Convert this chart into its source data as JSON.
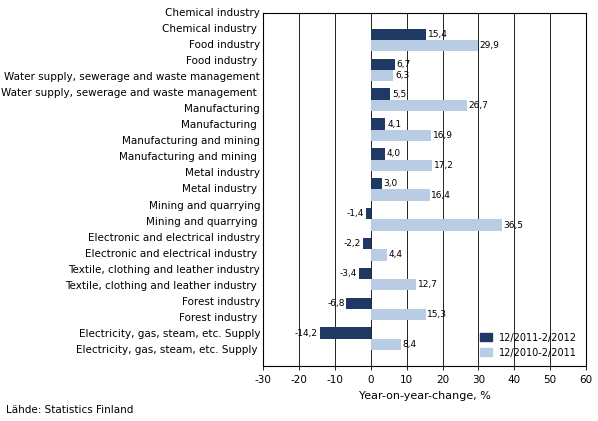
{
  "categories": [
    "Electricity, gas, steam, etc. Supply",
    "Forest industry",
    "Textile, clothing and leather industry",
    "Electronic and electrical industry",
    "Mining and quarrying",
    "Metal industry",
    "Manufacturing and mining",
    "Manufacturing",
    "Water supply, sewerage and waste management",
    "Food industry",
    "Chemical industry"
  ],
  "series1": [
    -14.2,
    -6.8,
    -3.4,
    -2.2,
    -1.4,
    3.0,
    4.0,
    4.1,
    5.5,
    6.7,
    15.4
  ],
  "series2": [
    8.4,
    15.3,
    12.7,
    4.4,
    36.5,
    16.4,
    17.2,
    16.9,
    26.7,
    6.3,
    29.9
  ],
  "labels1": [
    "-14,2",
    "-6,8",
    "-3,4",
    "-2,2",
    "-1,4",
    "3,0",
    "4,0",
    "4,1",
    "5,5",
    "6,7",
    "15,4"
  ],
  "labels2": [
    "8,4",
    "15,3",
    "12,7",
    "4,4",
    "36,5",
    "16,4",
    "17,2",
    "16,9",
    "26,7",
    "6,3",
    "29,9"
  ],
  "color1": "#1F3864",
  "color2": "#B8CCE4",
  "legend1": "12/2011-2/2012",
  "legend2": "12/2010-2/2011",
  "xlabel": "Year-on-year-change, %",
  "xlim": [
    -30,
    60
  ],
  "xticks": [
    -30,
    -20,
    -10,
    0,
    10,
    20,
    30,
    40,
    50,
    60
  ],
  "source": "Lähde: Statistics Finland",
  "bar_height": 0.38
}
